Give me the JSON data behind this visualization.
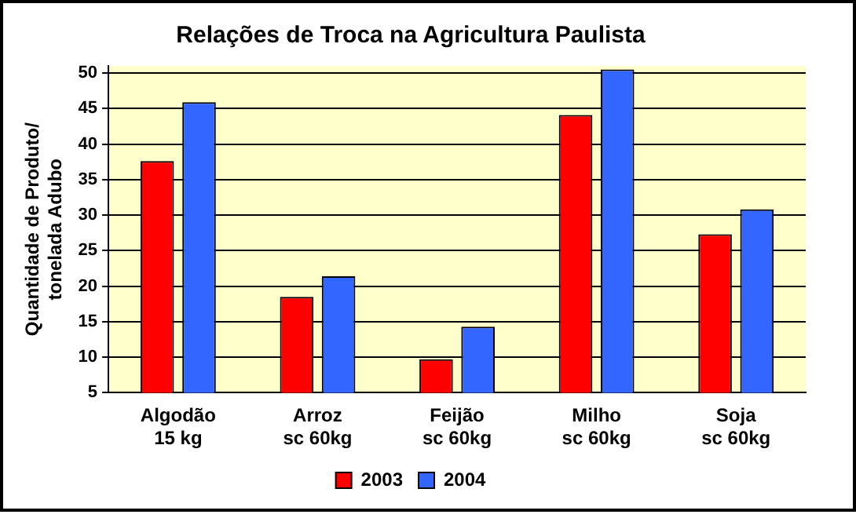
{
  "chart_data": {
    "type": "bar",
    "title": "Relações de Troca na Agricultura Paulista",
    "ylabel": "Quantidade de Produto/\ntonelada Adubo",
    "categories": [
      "Algodão\n15 kg",
      "Arroz\nsc 60kg",
      "Feijão\nsc 60kg",
      "Milho\nsc 60kg",
      "Soja\nsc 60kg"
    ],
    "series": [
      {
        "name": "2003",
        "color": "#ff0000",
        "values": [
          37.6,
          18.5,
          9.7,
          44.1,
          27.3
        ]
      },
      {
        "name": "2004",
        "color": "#3366ff",
        "values": [
          45.9,
          21.4,
          14.3,
          50.5,
          30.8
        ]
      }
    ],
    "ylim": [
      5,
      51
    ],
    "yticks": [
      5,
      10,
      15,
      20,
      25,
      30,
      35,
      40,
      45,
      50
    ],
    "grid": "y",
    "legend": "bottom"
  }
}
